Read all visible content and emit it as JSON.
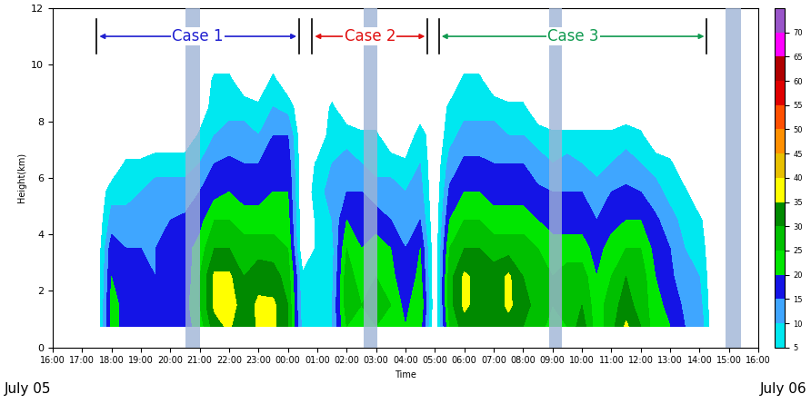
{
  "chart_data": {
    "type": "contour",
    "xlabel": "Time",
    "ylabel": "Height(km)",
    "xlim": [
      16,
      40
    ],
    "xticks": [
      {
        "value": 16,
        "label": "16:00"
      },
      {
        "value": 17,
        "label": "17:00"
      },
      {
        "value": 18,
        "label": "18:00"
      },
      {
        "value": 19,
        "label": "19:00"
      },
      {
        "value": 20,
        "label": "20:00"
      },
      {
        "value": 21,
        "label": "21:00"
      },
      {
        "value": 22,
        "label": "22:00"
      },
      {
        "value": 23,
        "label": "23:00"
      },
      {
        "value": 24,
        "label": "00:00"
      },
      {
        "value": 25,
        "label": "01:00"
      },
      {
        "value": 26,
        "label": "02:00"
      },
      {
        "value": 27,
        "label": "03:00"
      },
      {
        "value": 28,
        "label": "04:00"
      },
      {
        "value": 29,
        "label": "05:00"
      },
      {
        "value": 30,
        "label": "06:00"
      },
      {
        "value": 31,
        "label": "07:00"
      },
      {
        "value": 32,
        "label": "08:00"
      },
      {
        "value": 33,
        "label": "09:00"
      },
      {
        "value": 34,
        "label": "10:00"
      },
      {
        "value": 35,
        "label": "11:00"
      },
      {
        "value": 36,
        "label": "12:00"
      },
      {
        "value": 37,
        "label": "13:00"
      },
      {
        "value": 38,
        "label": "14:00"
      },
      {
        "value": 39,
        "label": "15:00"
      },
      {
        "value": 40,
        "label": "16:00"
      }
    ],
    "ylim": [
      0,
      12
    ],
    "yticks": [
      0,
      2,
      4,
      6,
      8,
      10,
      12
    ],
    "x": [
      17.5,
      18.0,
      18.5,
      19.0,
      19.5,
      20.0,
      20.5,
      21.0,
      21.5,
      22.0,
      22.5,
      23.0,
      23.5,
      24.0,
      24.5,
      25.0,
      25.5,
      26.0,
      26.5,
      27.0,
      27.5,
      28.0,
      28.5,
      29.0,
      29.5,
      30.0,
      30.5,
      31.0,
      31.5,
      32.0,
      32.5,
      33.0,
      33.5,
      34.0,
      34.5,
      35.0,
      35.5,
      36.0,
      36.5,
      37.0,
      37.5,
      38.0,
      38.5
    ],
    "y": [
      0.75,
      1.5,
      2.5,
      3.5,
      4.5,
      5.5,
      6.5,
      7.5,
      8.5,
      9.5,
      10.5,
      11.5
    ],
    "cells": [
      [
        0,
        0,
        0,
        0,
        0,
        0,
        0,
        0,
        0,
        0,
        0,
        0
      ],
      [
        22,
        22,
        20,
        18,
        12,
        8,
        0,
        0,
        0,
        0,
        0,
        0
      ],
      [
        18,
        18,
        16,
        15,
        12,
        8,
        6,
        0,
        0,
        0,
        0,
        0
      ],
      [
        20,
        18,
        16,
        15,
        12,
        10,
        6,
        0,
        0,
        0,
        0,
        0
      ],
      [
        20,
        18,
        15,
        15,
        14,
        12,
        8,
        0,
        0,
        0,
        0,
        0
      ],
      [
        20,
        20,
        18,
        16,
        15,
        12,
        8,
        0,
        0,
        0,
        0,
        0
      ],
      [
        18,
        18,
        16,
        18,
        16,
        12,
        8,
        0,
        0,
        0,
        0,
        0
      ],
      [
        22,
        25,
        25,
        22,
        18,
        15,
        10,
        6,
        0,
        0,
        0,
        0
      ],
      [
        33,
        36,
        36,
        30,
        25,
        18,
        15,
        10,
        8,
        6,
        0,
        0
      ],
      [
        36,
        38,
        36,
        30,
        25,
        20,
        16,
        12,
        8,
        6,
        0,
        0
      ],
      [
        30,
        32,
        30,
        28,
        22,
        18,
        15,
        12,
        8,
        0,
        0,
        0
      ],
      [
        36,
        36,
        33,
        28,
        22,
        18,
        15,
        10,
        6,
        0,
        0,
        0
      ],
      [
        36,
        36,
        32,
        28,
        22,
        20,
        18,
        15,
        10,
        6,
        0,
        0
      ],
      [
        30,
        30,
        28,
        25,
        22,
        20,
        18,
        15,
        8,
        0,
        0,
        0
      ],
      [
        8,
        6,
        6,
        0,
        0,
        0,
        0,
        0,
        0,
        0,
        0,
        0
      ],
      [
        6,
        8,
        8,
        6,
        6,
        8,
        6,
        0,
        0,
        0,
        0,
        0
      ],
      [
        10,
        10,
        8,
        8,
        10,
        12,
        10,
        8,
        6,
        0,
        0,
        0
      ],
      [
        25,
        28,
        28,
        25,
        20,
        15,
        12,
        8,
        0,
        0,
        0,
        0
      ],
      [
        22,
        25,
        22,
        20,
        18,
        15,
        10,
        6,
        0,
        0,
        0,
        0
      ],
      [
        25,
        28,
        25,
        22,
        18,
        12,
        8,
        6,
        0,
        0,
        0,
        0
      ],
      [
        22,
        25,
        22,
        20,
        15,
        12,
        8,
        0,
        0,
        0,
        0,
        0
      ],
      [
        20,
        18,
        15,
        15,
        12,
        10,
        6,
        0,
        0,
        0,
        0,
        0
      ],
      [
        22,
        25,
        22,
        20,
        15,
        12,
        10,
        8,
        0,
        0,
        0,
        0
      ],
      [
        0,
        0,
        0,
        0,
        0,
        0,
        0,
        0,
        0,
        0,
        0,
        0
      ],
      [
        25,
        28,
        28,
        25,
        20,
        16,
        12,
        8,
        6,
        0,
        0,
        0
      ],
      [
        33,
        36,
        36,
        30,
        25,
        20,
        16,
        12,
        8,
        6,
        0,
        0
      ],
      [
        32,
        33,
        33,
        30,
        25,
        20,
        16,
        12,
        8,
        6,
        0,
        0
      ],
      [
        30,
        32,
        32,
        28,
        22,
        18,
        15,
        12,
        8,
        0,
        0,
        0
      ],
      [
        33,
        36,
        36,
        28,
        22,
        18,
        15,
        10,
        6,
        0,
        0,
        0
      ],
      [
        30,
        32,
        30,
        28,
        22,
        18,
        15,
        10,
        6,
        0,
        0,
        0
      ],
      [
        28,
        28,
        28,
        25,
        20,
        16,
        12,
        8,
        0,
        0,
        0,
        0
      ],
      [
        22,
        25,
        25,
        22,
        18,
        15,
        10,
        6,
        0,
        0,
        0,
        0
      ],
      [
        25,
        28,
        28,
        22,
        18,
        15,
        12,
        6,
        0,
        0,
        0,
        0
      ],
      [
        33,
        30,
        28,
        22,
        18,
        15,
        10,
        6,
        0,
        0,
        0,
        0
      ],
      [
        22,
        22,
        20,
        18,
        15,
        12,
        8,
        6,
        0,
        0,
        0,
        0
      ],
      [
        28,
        28,
        25,
        22,
        18,
        15,
        10,
        6,
        0,
        0,
        0,
        0
      ],
      [
        36,
        32,
        30,
        25,
        20,
        16,
        12,
        8,
        0,
        0,
        0,
        0
      ],
      [
        30,
        28,
        28,
        25,
        20,
        15,
        10,
        6,
        0,
        0,
        0,
        0
      ],
      [
        22,
        22,
        20,
        18,
        16,
        12,
        8,
        0,
        0,
        0,
        0,
        0
      ],
      [
        20,
        18,
        16,
        15,
        12,
        8,
        6,
        0,
        0,
        0,
        0,
        0
      ],
      [
        15,
        14,
        12,
        10,
        8,
        6,
        0,
        0,
        0,
        0,
        0,
        0
      ],
      [
        14,
        12,
        10,
        8,
        6,
        0,
        0,
        0,
        0,
        0,
        0,
        0
      ],
      [
        0,
        0,
        0,
        0,
        0,
        0,
        0,
        0,
        0,
        0,
        0,
        0
      ]
    ],
    "levels": [
      5,
      10,
      15,
      20,
      25,
      30,
      35,
      40,
      45,
      50,
      55,
      60,
      65,
      70,
      75
    ],
    "colors": [
      "#00e8f0",
      "#3fa6ff",
      "#1414e6",
      "#00e600",
      "#00c000",
      "#008a00",
      "#ffff00",
      "#e8c000",
      "#ff9000",
      "#ff5000",
      "#e00000",
      "#b00000",
      "#ff00ff",
      "#9955c9"
    ],
    "colorbar_ticks": [
      5,
      10,
      15,
      20,
      25,
      30,
      35,
      40,
      45,
      50,
      55,
      60,
      65,
      70
    ],
    "annotations": [
      {
        "text": "Case 1",
        "start": 17.5,
        "end": 24.38,
        "color": "#2020d0"
      },
      {
        "text": "Case 2",
        "start": 24.83,
        "end": 28.75,
        "color": "#e01010"
      },
      {
        "text": "Case 3",
        "start": 29.14,
        "end": 38.25,
        "color": "#109a50"
      }
    ],
    "shaded_periods": [
      {
        "start": 20.52,
        "end": 21.0
      },
      {
        "start": 26.58,
        "end": 27.03
      },
      {
        "start": 32.88,
        "end": 33.33
      },
      {
        "start": 38.9,
        "end": 39.4
      }
    ],
    "date_labels": [
      "July 05",
      "July 06"
    ]
  }
}
